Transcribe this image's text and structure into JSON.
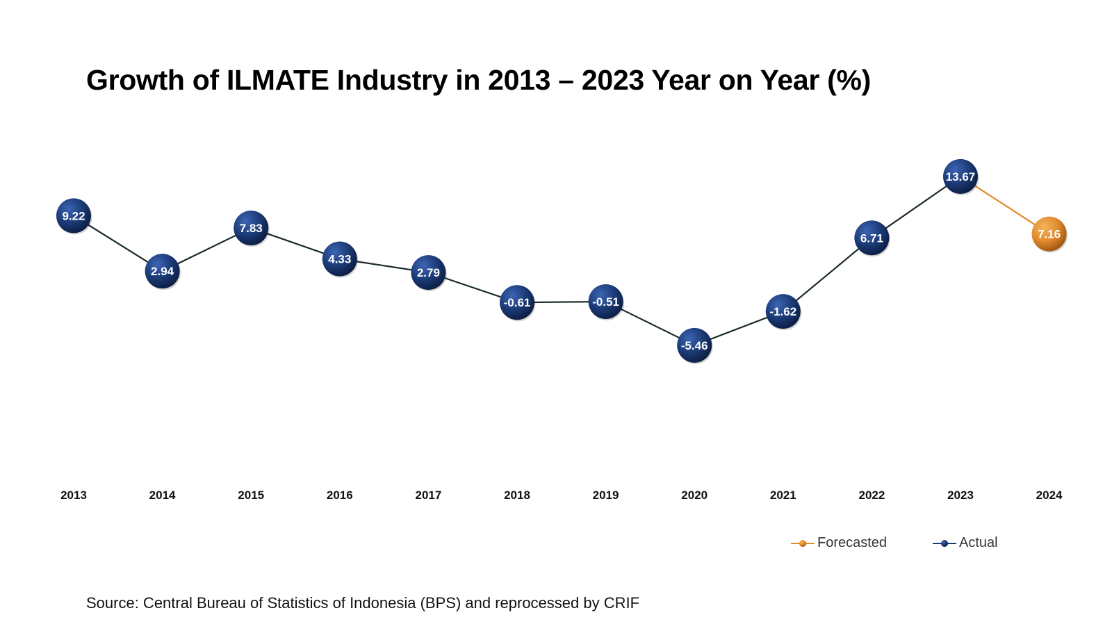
{
  "chart_data": {
    "type": "line",
    "title": "Growth of ILMATE Industry in 2013 – 2023 Year on Year (%)",
    "categories": [
      "2013",
      "2014",
      "2015",
      "2016",
      "2017",
      "2018",
      "2019",
      "2020",
      "2021",
      "2022",
      "2023",
      "2024"
    ],
    "series": [
      {
        "name": "Actual",
        "color": "#1b3a75",
        "x": [
          "2013",
          "2014",
          "2015",
          "2016",
          "2017",
          "2018",
          "2019",
          "2020",
          "2021",
          "2022",
          "2023"
        ],
        "values": [
          9.22,
          2.94,
          7.83,
          4.33,
          2.79,
          -0.61,
          -0.51,
          -5.46,
          -1.62,
          6.71,
          13.67
        ],
        "labels": [
          "9.22",
          "2.94",
          "7.83",
          "4.33",
          "2.79",
          "-0.61",
          "-0.51",
          "-5.46",
          "-1.62",
          "6.71",
          "13.67"
        ]
      },
      {
        "name": "Forecasted",
        "color": "#e08a2c",
        "x": [
          "2023",
          "2024"
        ],
        "values": [
          13.67,
          7.16
        ],
        "labels": [
          "",
          "7.16"
        ]
      }
    ],
    "legend": [
      "Forecasted",
      "Actual"
    ],
    "legend_position": "bottom-right",
    "ylim": [
      -10,
      15
    ],
    "grid": "vertical",
    "xlabel": "",
    "ylabel": ""
  },
  "source": "Source: Central Bureau of Statistics of Indonesia (BPS) and reprocessed by CRIF"
}
